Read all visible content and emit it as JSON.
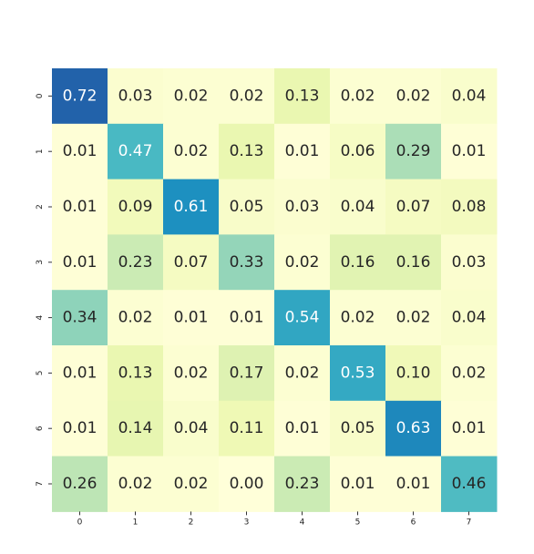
{
  "chart_data": {
    "type": "heatmap",
    "x_categories": [
      "0",
      "1",
      "2",
      "3",
      "4",
      "5",
      "6",
      "7"
    ],
    "y_categories": [
      "0",
      "1",
      "2",
      "3",
      "4",
      "5",
      "6",
      "7"
    ],
    "values": [
      [
        0.72,
        0.03,
        0.02,
        0.02,
        0.13,
        0.02,
        0.02,
        0.04
      ],
      [
        0.01,
        0.47,
        0.02,
        0.13,
        0.01,
        0.06,
        0.29,
        0.01
      ],
      [
        0.01,
        0.09,
        0.61,
        0.05,
        0.03,
        0.04,
        0.07,
        0.08
      ],
      [
        0.01,
        0.23,
        0.07,
        0.33,
        0.02,
        0.16,
        0.16,
        0.03
      ],
      [
        0.34,
        0.02,
        0.01,
        0.01,
        0.54,
        0.02,
        0.02,
        0.04
      ],
      [
        0.01,
        0.13,
        0.02,
        0.17,
        0.02,
        0.53,
        0.1,
        0.02
      ],
      [
        0.01,
        0.14,
        0.04,
        0.11,
        0.01,
        0.05,
        0.63,
        0.01
      ],
      [
        0.26,
        0.02,
        0.02,
        0.0,
        0.23,
        0.01,
        0.01,
        0.46
      ]
    ],
    "title": "",
    "xlabel": "",
    "ylabel": "",
    "value_format": "0.00",
    "color_range": [
      0,
      0.72
    ],
    "colormap": "YlGnBu",
    "colorbar": false,
    "grid": false,
    "legend": "none"
  }
}
